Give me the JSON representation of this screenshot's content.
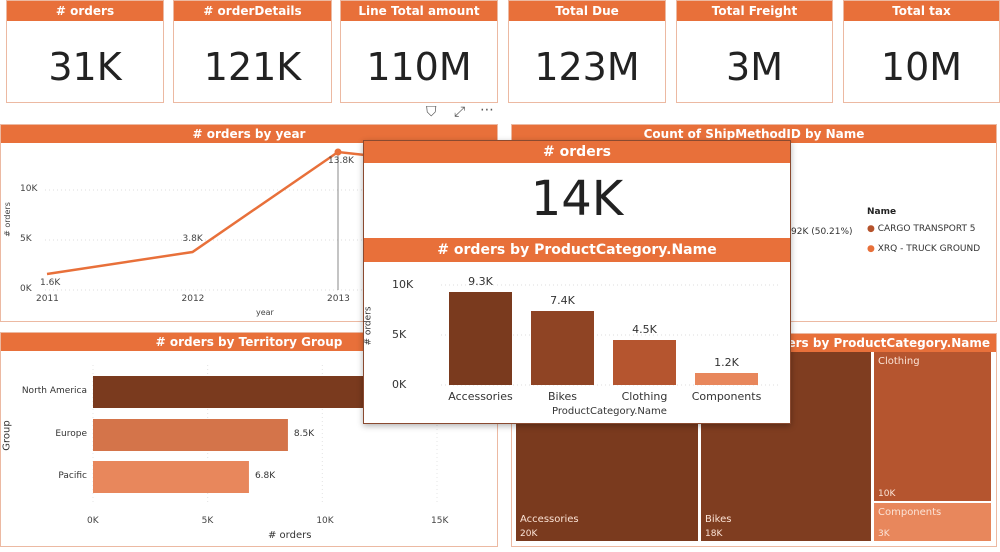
{
  "kpis": [
    {
      "title": "# orders",
      "value": "31K"
    },
    {
      "title": "# orderDetails",
      "value": "121K"
    },
    {
      "title": "Line Total amount",
      "value": "110M"
    },
    {
      "title": "Total Due",
      "value": "123M"
    },
    {
      "title": "Total Freight",
      "value": "3M"
    },
    {
      "title": "Total tax",
      "value": "10M"
    }
  ],
  "visual_toolbar": {
    "icons": [
      "filter-icon",
      "focus-mode-icon",
      "more-options-icon"
    ]
  },
  "colors": {
    "accent": "#e8703a",
    "dark": "#7a3a1e",
    "mid": "#a0482a",
    "light": "#e8875c"
  },
  "chart_data": [
    {
      "type": "line",
      "title": "# orders by year",
      "xlabel": "year",
      "ylabel": "# orders",
      "x": [
        "2011",
        "2012",
        "2013"
      ],
      "values": [
        1.6,
        3.8,
        13.8
      ],
      "data_labels": [
        "1.6K",
        "3.8K",
        "13.8K"
      ],
      "yticks": [
        "0K",
        "5K",
        "10K"
      ],
      "ylim": [
        0,
        13.8
      ],
      "grid": true
    },
    {
      "type": "pie",
      "title": "Count of ShipMethodID by Name",
      "visible_label": "92K (50.21%)",
      "legend_title": "Name",
      "legend": [
        {
          "name": "CARGO TRANSPORT 5",
          "color": "#b5532c"
        },
        {
          "name": "XRQ - TRUCK GROUND",
          "color": "#e8703a"
        }
      ],
      "legend_placement": "right"
    },
    {
      "type": "bar",
      "orientation": "horizontal",
      "title": "# orders by Territory Group",
      "xlabel": "# orders",
      "ylabel": "Group",
      "categories": [
        "North America",
        "Europe",
        "Pacific"
      ],
      "values": [
        null,
        8.5,
        6.8
      ],
      "data_labels": [
        "",
        "8.5K",
        "6.8K"
      ],
      "colors": [
        "#7a3a1e",
        "#d4744a",
        "#e8875c"
      ],
      "xticks": [
        "0K",
        "5K",
        "10K",
        "15K"
      ],
      "xlim": [
        0,
        15
      ]
    },
    {
      "type": "treemap",
      "title": "# orders by ProductCategory.Name",
      "items": [
        {
          "name": "Accessories",
          "value": "20K",
          "color": "#7a3a1e"
        },
        {
          "name": "Bikes",
          "value": "18K",
          "color": "#7f3d20"
        },
        {
          "name": "Clothing",
          "value": "10K",
          "color": "#b5552f"
        },
        {
          "name": "Components",
          "value": "3K",
          "color": "#e8875c"
        }
      ]
    },
    {
      "type": "bar",
      "title": "# orders by ProductCategory.Name",
      "xlabel": "ProductCategory.Name",
      "ylabel": "# orders",
      "categories": [
        "Accessories",
        "Bikes",
        "Clothing",
        "Components"
      ],
      "values": [
        9.3,
        7.4,
        4.5,
        1.2
      ],
      "data_labels": [
        "9.3K",
        "7.4K",
        "4.5K",
        "1.2K"
      ],
      "colors": [
        "#7a3a1e",
        "#8f4424",
        "#b5552f",
        "#e8875c"
      ],
      "yticks": [
        "0K",
        "5K",
        "10K"
      ],
      "ylim": [
        0,
        10
      ]
    }
  ],
  "tooltip": {
    "title": "# orders",
    "value": "14K"
  }
}
